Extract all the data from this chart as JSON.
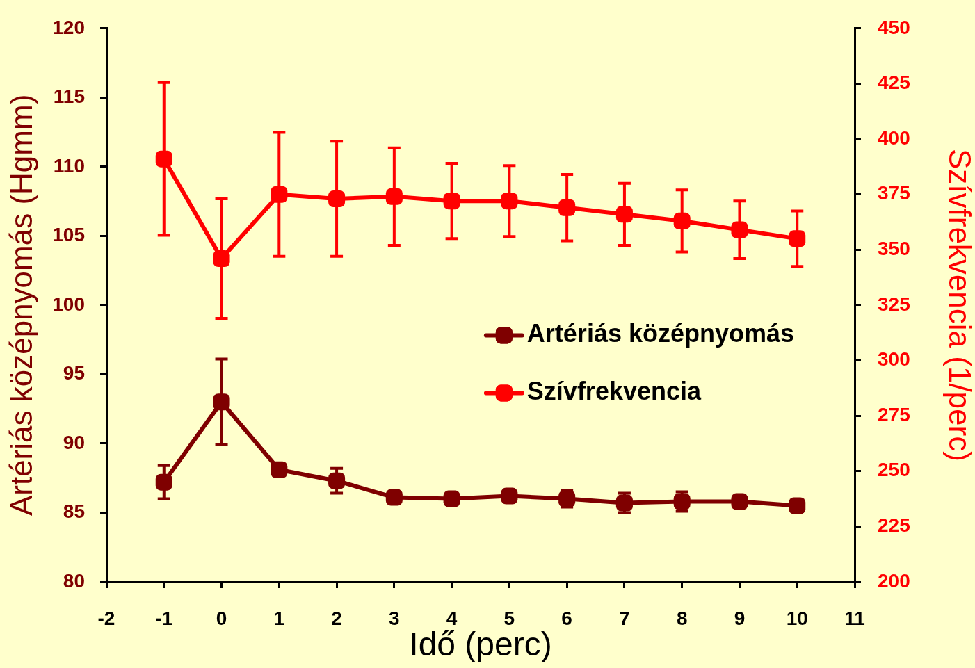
{
  "chart_data": {
    "type": "line",
    "xlabel": "Idő (perc)",
    "ylabel": "Artériás középnyomás (Hgmm)",
    "y2label": "Szívfrekvencia (1/perc)",
    "x": [
      -1,
      0,
      1,
      2,
      3,
      4,
      5,
      6,
      7,
      8,
      9,
      10
    ],
    "xlim": [
      -2,
      11
    ],
    "xticks": [
      -2,
      -1,
      0,
      1,
      2,
      3,
      4,
      5,
      6,
      7,
      8,
      9,
      10,
      11
    ],
    "ylim": [
      80,
      120
    ],
    "yticks": [
      80,
      85,
      90,
      95,
      100,
      105,
      110,
      115,
      120
    ],
    "y2lim": [
      200,
      450
    ],
    "y2ticks": [
      200,
      225,
      250,
      275,
      300,
      325,
      350,
      375,
      400,
      425,
      450
    ],
    "series": [
      {
        "name": "Artériás középnyomás",
        "color": "#7f0000",
        "values": [
          87.2,
          93.0,
          88.1,
          87.3,
          86.1,
          86.0,
          86.2,
          86.0,
          85.7,
          85.8,
          85.8,
          85.5
        ],
        "errors": [
          1.2,
          3.1,
          null,
          0.9,
          null,
          null,
          null,
          0.6,
          0.7,
          0.7,
          null,
          null
        ]
      },
      {
        "name": "Szívfrekvencia",
        "color": "#ff0000",
        "axis": "y2",
        "values": [
          391,
          346,
          375,
          373,
          374,
          372,
          372,
          369,
          366,
          363,
          359,
          355
        ],
        "errors": [
          34.5,
          27,
          28,
          26,
          22,
          17,
          16,
          15,
          14,
          14,
          13,
          12.5
        ]
      }
    ],
    "marker": "square",
    "line_style": "solid",
    "grid": false,
    "legend": "right"
  }
}
